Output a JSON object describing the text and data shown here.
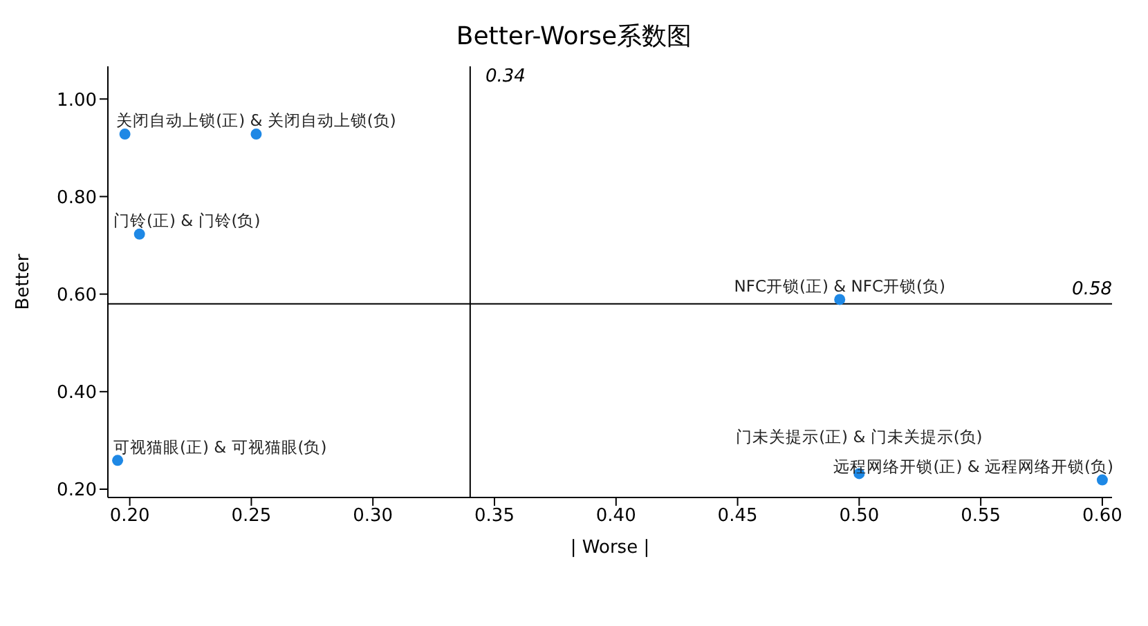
{
  "chart_data": {
    "type": "scatter",
    "title": "Better-Worse系数图",
    "xlabel": "| Worse |",
    "ylabel": "Better",
    "x": [
      0.198,
      0.252,
      0.204,
      0.492,
      0.195,
      0.5,
      0.6
    ],
    "series": [
      {
        "color": "#1e88e5",
        "values": [
          0.928,
          0.928,
          0.723,
          0.589,
          0.259,
          0.232,
          0.219
        ]
      }
    ],
    "xlim": [
      0.191,
      0.604
    ],
    "xticks": [
      {
        "value": 0.2,
        "label": "0.20"
      },
      {
        "value": 0.25,
        "label": "0.25"
      },
      {
        "value": 0.3,
        "label": "0.30"
      },
      {
        "value": 0.35,
        "label": "0.35"
      },
      {
        "value": 0.4,
        "label": "0.40"
      },
      {
        "value": 0.45,
        "label": "0.45"
      },
      {
        "value": 0.5,
        "label": "0.50"
      },
      {
        "value": 0.55,
        "label": "0.55"
      },
      {
        "value": 0.6,
        "label": "0.60"
      }
    ],
    "ylim": [
      0.183,
      1.067
    ],
    "yticks": [
      {
        "value": 0.2,
        "label": "0.20"
      },
      {
        "value": 0.4,
        "label": "0.40"
      },
      {
        "value": 0.6,
        "label": "0.60"
      },
      {
        "value": 0.8,
        "label": "0.80"
      },
      {
        "value": 1.0,
        "label": "1.00"
      }
    ],
    "ref_lines": [
      {
        "axis": "x",
        "value": 0.34,
        "label": "0.34",
        "color": "#000000"
      },
      {
        "axis": "y",
        "value": 0.58,
        "label": "0.58",
        "color": "#000000"
      }
    ],
    "annotations": [
      {
        "text": "关闭自动上锁(正) & 关闭自动上锁(负)",
        "x": 0.252,
        "y": 0.928
      },
      {
        "text": "门铃(正) & 门铃(负)",
        "x": 0.204,
        "y": 0.723
      },
      {
        "text": "NFC开锁(正) & NFC开锁(负)",
        "x": 0.492,
        "y": 0.589
      },
      {
        "text": "可视猫眼(正) & 可视猫眼(负)",
        "x": 0.195,
        "y": 0.259
      },
      {
        "text": "门未关提示(正) & 门未关提示(负)",
        "x": 0.5,
        "y": 0.232
      },
      {
        "text": "远程网络开锁(正) & 远程网络开锁(负)",
        "x": 0.6,
        "y": 0.219
      }
    ],
    "grid": false,
    "marker": "circle",
    "legend": false
  }
}
